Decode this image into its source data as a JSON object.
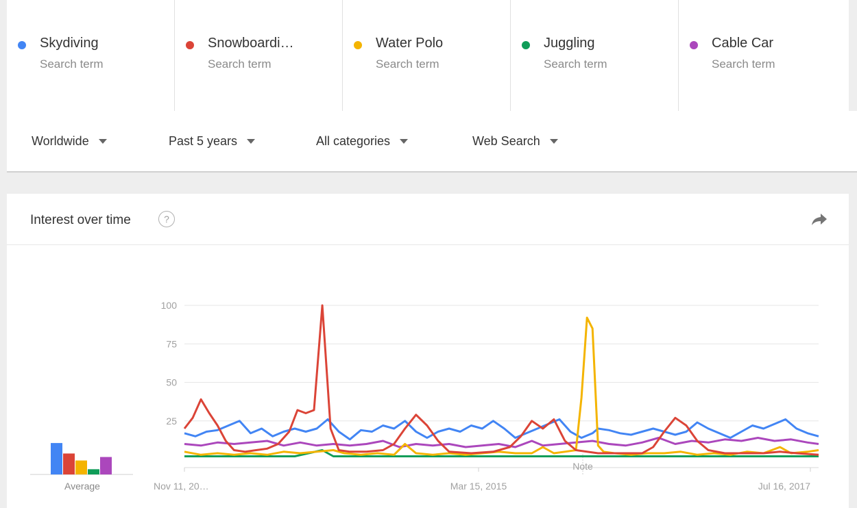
{
  "terms": [
    {
      "name": "Skydiving",
      "sub": "Search term",
      "color": "#4285f4"
    },
    {
      "name": "Snowboardi…",
      "sub": "Search term",
      "color": "#db4437"
    },
    {
      "name": "Water Polo",
      "sub": "Search term",
      "color": "#f4b400"
    },
    {
      "name": "Juggling",
      "sub": "Search term",
      "color": "#0f9d58"
    },
    {
      "name": "Cable Car",
      "sub": "Search term",
      "color": "#ab47bc"
    }
  ],
  "filters": {
    "region": "Worldwide",
    "time": "Past 5 years",
    "category": "All categories",
    "search_type": "Web Search"
  },
  "card": {
    "title": "Interest over time",
    "help_icon": "question-circle-icon",
    "share_icon": "share-arrow-icon"
  },
  "chart_data": {
    "type": "line",
    "title": "Interest over time",
    "ylim": [
      0,
      100
    ],
    "y_ticks": [
      25,
      50,
      75,
      100
    ],
    "x_ticks": [
      "Nov 11, 20…",
      "Mar 15, 2015",
      "Jul 16, 2017"
    ],
    "annotation": "Note",
    "average_label": "Average",
    "averages": [
      18,
      12,
      8,
      3,
      10
    ],
    "series": [
      {
        "name": "Skydiving",
        "color": "#4285f4",
        "values": [
          [
            0,
            17
          ],
          [
            4,
            15
          ],
          [
            8,
            18
          ],
          [
            12,
            19
          ],
          [
            16,
            22
          ],
          [
            20,
            25
          ],
          [
            24,
            17
          ],
          [
            28,
            20
          ],
          [
            32,
            15
          ],
          [
            36,
            18
          ],
          [
            40,
            20
          ],
          [
            44,
            18
          ],
          [
            48,
            20
          ],
          [
            52,
            26
          ],
          [
            56,
            18
          ],
          [
            60,
            13
          ],
          [
            64,
            19
          ],
          [
            68,
            18
          ],
          [
            72,
            22
          ],
          [
            76,
            20
          ],
          [
            80,
            25
          ],
          [
            84,
            18
          ],
          [
            88,
            14
          ],
          [
            92,
            18
          ],
          [
            96,
            20
          ],
          [
            100,
            18
          ],
          [
            104,
            22
          ],
          [
            108,
            20
          ],
          [
            112,
            25
          ],
          [
            116,
            20
          ],
          [
            120,
            14
          ],
          [
            124,
            17
          ],
          [
            128,
            20
          ],
          [
            132,
            23
          ],
          [
            136,
            26
          ],
          [
            140,
            18
          ],
          [
            144,
            14
          ],
          [
            148,
            17
          ],
          [
            150,
            20
          ],
          [
            154,
            19
          ],
          [
            158,
            17
          ],
          [
            162,
            16
          ],
          [
            166,
            18
          ],
          [
            170,
            20
          ],
          [
            174,
            18
          ],
          [
            178,
            16
          ],
          [
            182,
            18
          ],
          [
            186,
            24
          ],
          [
            190,
            20
          ],
          [
            194,
            17
          ],
          [
            198,
            14
          ],
          [
            202,
            18
          ],
          [
            206,
            22
          ],
          [
            210,
            20
          ],
          [
            214,
            23
          ],
          [
            218,
            26
          ],
          [
            222,
            20
          ],
          [
            226,
            17
          ],
          [
            230,
            15
          ]
        ]
      },
      {
        "name": "Snowboarding",
        "color": "#db4437",
        "values": [
          [
            0,
            20
          ],
          [
            3,
            27
          ],
          [
            6,
            39
          ],
          [
            9,
            30
          ],
          [
            12,
            22
          ],
          [
            15,
            12
          ],
          [
            18,
            6
          ],
          [
            22,
            5
          ],
          [
            26,
            6
          ],
          [
            30,
            7
          ],
          [
            34,
            10
          ],
          [
            38,
            18
          ],
          [
            41,
            32
          ],
          [
            44,
            30
          ],
          [
            47,
            32
          ],
          [
            50,
            100
          ],
          [
            53,
            20
          ],
          [
            56,
            6
          ],
          [
            60,
            5
          ],
          [
            66,
            5
          ],
          [
            72,
            6
          ],
          [
            76,
            10
          ],
          [
            80,
            20
          ],
          [
            84,
            29
          ],
          [
            88,
            22
          ],
          [
            92,
            12
          ],
          [
            96,
            5
          ],
          [
            104,
            4
          ],
          [
            112,
            5
          ],
          [
            118,
            8
          ],
          [
            122,
            15
          ],
          [
            126,
            25
          ],
          [
            130,
            20
          ],
          [
            134,
            26
          ],
          [
            138,
            12
          ],
          [
            142,
            6
          ],
          [
            150,
            4
          ],
          [
            158,
            4
          ],
          [
            166,
            4
          ],
          [
            170,
            8
          ],
          [
            174,
            18
          ],
          [
            178,
            27
          ],
          [
            182,
            22
          ],
          [
            186,
            12
          ],
          [
            190,
            6
          ],
          [
            196,
            4
          ],
          [
            204,
            4
          ],
          [
            210,
            4
          ],
          [
            216,
            5
          ],
          [
            222,
            4
          ],
          [
            230,
            3
          ]
        ]
      },
      {
        "name": "Water Polo",
        "color": "#f4b400",
        "values": [
          [
            0,
            5
          ],
          [
            6,
            3
          ],
          [
            12,
            4
          ],
          [
            18,
            3
          ],
          [
            24,
            4
          ],
          [
            30,
            3
          ],
          [
            36,
            5
          ],
          [
            42,
            4
          ],
          [
            48,
            5
          ],
          [
            54,
            6
          ],
          [
            58,
            4
          ],
          [
            64,
            3
          ],
          [
            70,
            4
          ],
          [
            76,
            3
          ],
          [
            80,
            10
          ],
          [
            84,
            4
          ],
          [
            90,
            3
          ],
          [
            96,
            4
          ],
          [
            102,
            3
          ],
          [
            108,
            4
          ],
          [
            114,
            5
          ],
          [
            120,
            4
          ],
          [
            126,
            4
          ],
          [
            130,
            8
          ],
          [
            134,
            4
          ],
          [
            138,
            5
          ],
          [
            142,
            6
          ],
          [
            144,
            40
          ],
          [
            146,
            92
          ],
          [
            148,
            85
          ],
          [
            150,
            9
          ],
          [
            152,
            5
          ],
          [
            156,
            4
          ],
          [
            162,
            3
          ],
          [
            168,
            4
          ],
          [
            174,
            4
          ],
          [
            180,
            5
          ],
          [
            186,
            3
          ],
          [
            192,
            4
          ],
          [
            198,
            3
          ],
          [
            204,
            5
          ],
          [
            210,
            4
          ],
          [
            216,
            8
          ],
          [
            220,
            4
          ],
          [
            226,
            5
          ],
          [
            230,
            6
          ]
        ]
      },
      {
        "name": "Juggling",
        "color": "#0f9d58",
        "values": [
          [
            0,
            2
          ],
          [
            20,
            2
          ],
          [
            40,
            2
          ],
          [
            50,
            6
          ],
          [
            54,
            2
          ],
          [
            80,
            2
          ],
          [
            100,
            2
          ],
          [
            120,
            2
          ],
          [
            140,
            2
          ],
          [
            160,
            2
          ],
          [
            180,
            2
          ],
          [
            200,
            2
          ],
          [
            220,
            2
          ],
          [
            230,
            2
          ]
        ]
      },
      {
        "name": "Cable Car",
        "color": "#ab47bc",
        "values": [
          [
            0,
            10
          ],
          [
            6,
            9
          ],
          [
            12,
            11
          ],
          [
            18,
            10
          ],
          [
            24,
            11
          ],
          [
            30,
            12
          ],
          [
            36,
            9
          ],
          [
            42,
            11
          ],
          [
            48,
            9
          ],
          [
            54,
            10
          ],
          [
            60,
            9
          ],
          [
            66,
            10
          ],
          [
            72,
            12
          ],
          [
            78,
            8
          ],
          [
            84,
            10
          ],
          [
            90,
            9
          ],
          [
            96,
            10
          ],
          [
            102,
            8
          ],
          [
            108,
            9
          ],
          [
            114,
            10
          ],
          [
            120,
            8
          ],
          [
            126,
            12
          ],
          [
            130,
            9
          ],
          [
            136,
            10
          ],
          [
            142,
            11
          ],
          [
            148,
            12
          ],
          [
            154,
            10
          ],
          [
            160,
            9
          ],
          [
            166,
            11
          ],
          [
            172,
            14
          ],
          [
            178,
            10
          ],
          [
            184,
            12
          ],
          [
            190,
            11
          ],
          [
            196,
            13
          ],
          [
            202,
            12
          ],
          [
            208,
            14
          ],
          [
            214,
            12
          ],
          [
            220,
            13
          ],
          [
            226,
            11
          ],
          [
            230,
            10
          ]
        ]
      }
    ]
  }
}
